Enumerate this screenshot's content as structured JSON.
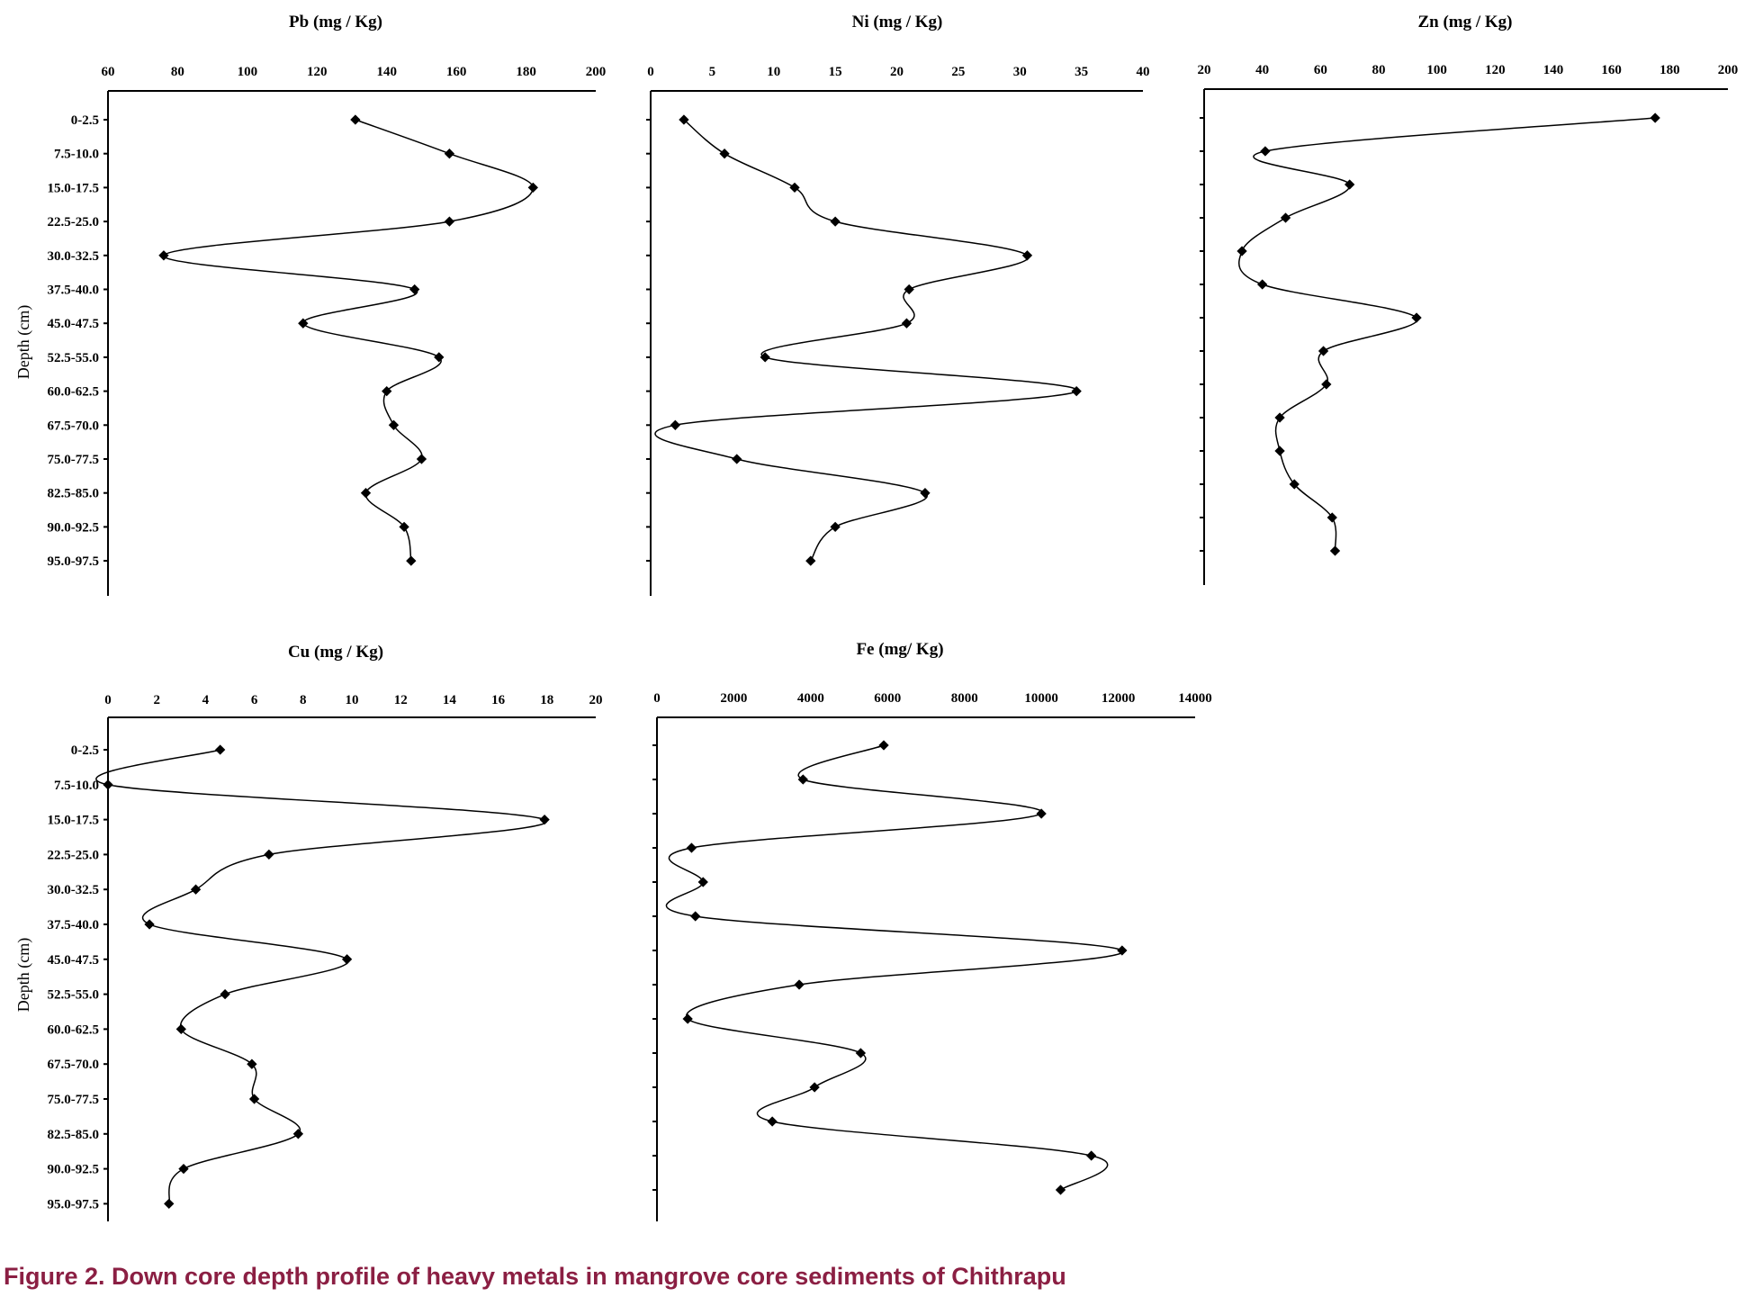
{
  "caption": "Figure 2. Down core depth profile of heavy metals in mangrove core sediments of Chithrapu",
  "colors": {
    "caption": "#8b1f43",
    "lines": "#000000"
  },
  "depth_axis_label": "Depth (cm)",
  "chart_data": [
    {
      "type": "line",
      "title": "Pb (mg / Kg)",
      "xlim": [
        60,
        200
      ],
      "xticks": [
        60,
        80,
        100,
        120,
        140,
        160,
        180,
        200
      ],
      "y_categories": [
        "0-2.5",
        "7.5-10.0",
        "15.0-17.5",
        "22.5-25.0",
        "30.0-32.5",
        "37.5-40.0",
        "45.0-47.5",
        "52.5-55.0",
        "60.0-62.5",
        "67.5-70.0",
        "75.0-77.5",
        "82.5-85.0",
        "90.0-92.5",
        "95.0-97.5"
      ],
      "ylabel": "Depth (cm)",
      "series": [
        {
          "values": [
            131,
            158,
            182,
            158,
            76,
            148,
            116,
            155,
            140,
            142,
            150,
            134,
            145,
            147
          ]
        }
      ]
    },
    {
      "type": "line",
      "title": "Ni (mg / Kg)",
      "xlim": [
        0,
        40
      ],
      "xticks": [
        0,
        5,
        10,
        15,
        20,
        25,
        30,
        35,
        40
      ],
      "y_categories": [
        "0-2.5",
        "7.5-10.0",
        "15.0-17.5",
        "22.5-25.0",
        "30.0-32.5",
        "37.5-40.0",
        "45.0-47.5",
        "52.5-55.0",
        "60.0-62.5",
        "67.5-70.0",
        "75.0-77.5",
        "82.5-85.0",
        "90.0-92.5",
        "95.0-97.5"
      ],
      "series": [
        {
          "values": [
            2.7,
            6,
            11.7,
            15,
            30.6,
            21,
            20.8,
            9.3,
            34.6,
            2,
            7,
            22.3,
            15,
            13
          ]
        }
      ]
    },
    {
      "type": "line",
      "title": "Zn (mg / Kg)",
      "xlim": [
        20,
        200
      ],
      "xticks": [
        20,
        40,
        60,
        80,
        100,
        120,
        140,
        160,
        180,
        200
      ],
      "y_categories": [
        "0-2.5",
        "7.5-10.0",
        "15.0-17.5",
        "22.5-25.0",
        "30.0-32.5",
        "37.5-40.0",
        "45.0-47.5",
        "52.5-55.0",
        "60.0-62.5",
        "67.5-70.0",
        "75.0-77.5",
        "82.5-85.0",
        "90.0-92.5",
        "95.0-97.5"
      ],
      "series": [
        {
          "values": [
            175,
            41,
            70,
            48,
            33,
            40,
            93,
            61,
            62,
            46,
            46,
            51,
            64,
            65
          ]
        }
      ]
    },
    {
      "type": "line",
      "title": "Cu (mg / Kg)",
      "xlim": [
        0,
        20
      ],
      "xticks": [
        0,
        2,
        4,
        6,
        8,
        10,
        12,
        14,
        16,
        18,
        20
      ],
      "y_categories": [
        "0-2.5",
        "7.5-10.0",
        "15.0-17.5",
        "22.5-25.0",
        "30.0-32.5",
        "37.5-40.0",
        "45.0-47.5",
        "52.5-55.0",
        "60.0-62.5",
        "67.5-70.0",
        "75.0-77.5",
        "82.5-85.0",
        "90.0-92.5",
        "95.0-97.5"
      ],
      "ylabel": "Depth (cm)",
      "series": [
        {
          "values": [
            4.6,
            0,
            17.9,
            6.6,
            3.6,
            1.7,
            9.8,
            4.8,
            3,
            5.9,
            6,
            7.8,
            3.1,
            2.5
          ]
        }
      ]
    },
    {
      "type": "line",
      "title": "Fe (mg/ Kg)",
      "xlim": [
        0,
        14000
      ],
      "xticks": [
        0,
        2000,
        4000,
        6000,
        8000,
        10000,
        12000,
        14000
      ],
      "y_categories": [
        "",
        "",
        "",
        "",
        "",
        "",
        "",
        "",
        "",
        "",
        "",
        "",
        "",
        ""
      ],
      "series": [
        {
          "values": [
            5900,
            3800,
            10000,
            900,
            1200,
            1000,
            12100,
            3700,
            800,
            5300,
            4100,
            3000,
            11300,
            10500
          ]
        }
      ]
    }
  ]
}
